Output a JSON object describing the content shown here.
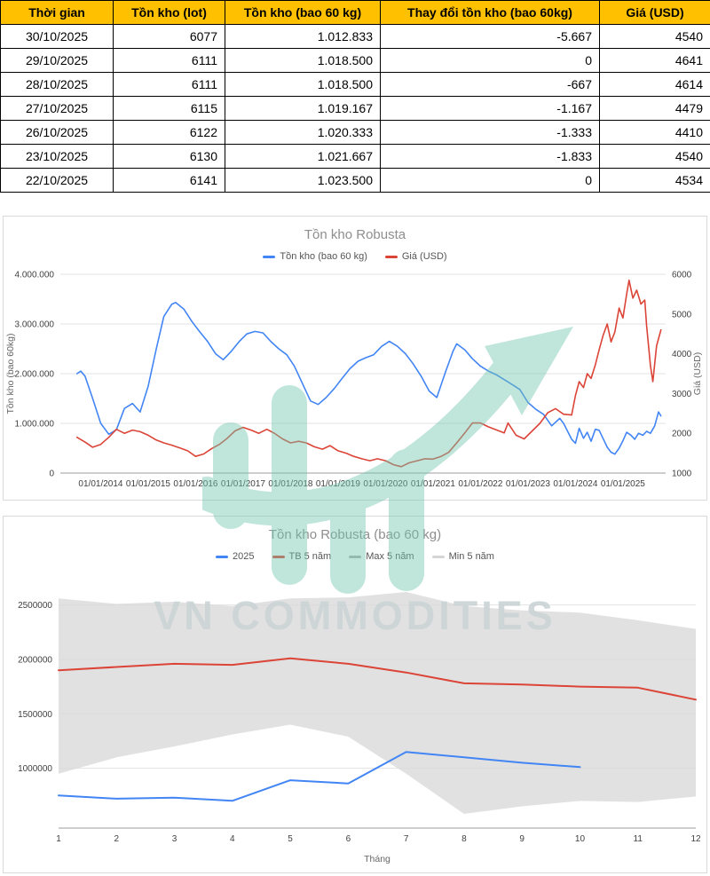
{
  "table": {
    "header_bg": "#FFC000",
    "columns": [
      "Thời gian",
      "Tồn kho (lot)",
      "Tồn kho (bao 60 kg)",
      "Thay đổi tồn kho (bao 60kg)",
      "Giá (USD)"
    ],
    "rows": [
      [
        "30/10/2025",
        "6077",
        "1.012.833",
        "-5.667",
        "4540"
      ],
      [
        "29/10/2025",
        "6111",
        "1.018.500",
        "0",
        "4641"
      ],
      [
        "28/10/2025",
        "6111",
        "1.018.500",
        "-667",
        "4614"
      ],
      [
        "27/10/2025",
        "6115",
        "1.019.167",
        "-1.167",
        "4479"
      ],
      [
        "26/10/2025",
        "6122",
        "1.020.333",
        "-1.333",
        "4410"
      ],
      [
        "23/10/2025",
        "6130",
        "1.021.667",
        "-1.833",
        "4540"
      ],
      [
        "22/10/2025",
        "6141",
        "1.023.500",
        "0",
        "4534"
      ]
    ]
  },
  "watermark": {
    "text": "VN COMMODITIES",
    "color": "#ccd4d6",
    "arrow_color": "#74c7b0"
  },
  "chart_data": [
    {
      "type": "line",
      "title": "Tồn kho Robusta",
      "legend_position": "top",
      "grid": true,
      "xlim": [
        2013.15,
        2025.9
      ],
      "x_ticks": [
        "01/01/2014",
        "01/01/2015",
        "01/01/2016",
        "01/01/2017",
        "01/01/2018",
        "01/01/2019",
        "01/01/2020",
        "01/01/2021",
        "01/01/2022",
        "01/01/2023",
        "01/01/2024",
        "01/01/2025"
      ],
      "x_tick_values": [
        2014,
        2015,
        2016,
        2017,
        2018,
        2019,
        2020,
        2021,
        2022,
        2023,
        2024,
        2025
      ],
      "y_left": {
        "label": "Tồn kho (bao 60kg)",
        "lim": [
          0,
          4000000
        ],
        "ticks": [
          0,
          1000000,
          2000000,
          3000000,
          4000000
        ],
        "tick_labels": [
          "0",
          "1.000.000",
          "2.000.000",
          "3.000.000",
          "4.000.000"
        ]
      },
      "y_right": {
        "label": "Giá (USD)",
        "lim": [
          1000,
          6000
        ],
        "ticks": [
          1000,
          2000,
          3000,
          4000,
          5000,
          6000
        ]
      },
      "series": [
        {
          "name": "Tồn kho (bao 60 kg)",
          "color": "#4285F4",
          "axis": "left",
          "points": [
            [
              2013.5,
              2000000
            ],
            [
              2013.58,
              2050000
            ],
            [
              2013.67,
              1950000
            ],
            [
              2013.83,
              1500000
            ],
            [
              2014.0,
              1000000
            ],
            [
              2014.17,
              780000
            ],
            [
              2014.33,
              870000
            ],
            [
              2014.5,
              1300000
            ],
            [
              2014.67,
              1400000
            ],
            [
              2014.83,
              1230000
            ],
            [
              2015.0,
              1750000
            ],
            [
              2015.17,
              2500000
            ],
            [
              2015.33,
              3150000
            ],
            [
              2015.5,
              3400000
            ],
            [
              2015.58,
              3430000
            ],
            [
              2015.75,
              3300000
            ],
            [
              2015.92,
              3050000
            ],
            [
              2016.08,
              2850000
            ],
            [
              2016.25,
              2650000
            ],
            [
              2016.42,
              2400000
            ],
            [
              2016.58,
              2280000
            ],
            [
              2016.75,
              2450000
            ],
            [
              2016.92,
              2650000
            ],
            [
              2017.08,
              2800000
            ],
            [
              2017.25,
              2850000
            ],
            [
              2017.42,
              2820000
            ],
            [
              2017.58,
              2650000
            ],
            [
              2017.75,
              2500000
            ],
            [
              2017.92,
              2380000
            ],
            [
              2018.08,
              2150000
            ],
            [
              2018.25,
              1800000
            ],
            [
              2018.42,
              1450000
            ],
            [
              2018.58,
              1380000
            ],
            [
              2018.75,
              1520000
            ],
            [
              2018.92,
              1700000
            ],
            [
              2019.08,
              1900000
            ],
            [
              2019.25,
              2100000
            ],
            [
              2019.42,
              2250000
            ],
            [
              2019.58,
              2320000
            ],
            [
              2019.75,
              2380000
            ],
            [
              2019.92,
              2550000
            ],
            [
              2020.08,
              2650000
            ],
            [
              2020.25,
              2550000
            ],
            [
              2020.42,
              2400000
            ],
            [
              2020.58,
              2200000
            ],
            [
              2020.75,
              1950000
            ],
            [
              2020.92,
              1650000
            ],
            [
              2021.08,
              1520000
            ],
            [
              2021.25,
              2000000
            ],
            [
              2021.42,
              2450000
            ],
            [
              2021.5,
              2600000
            ],
            [
              2021.67,
              2480000
            ],
            [
              2021.83,
              2300000
            ],
            [
              2022.0,
              2150000
            ],
            [
              2022.17,
              2050000
            ],
            [
              2022.33,
              1980000
            ],
            [
              2022.5,
              1880000
            ],
            [
              2022.67,
              1780000
            ],
            [
              2022.83,
              1680000
            ],
            [
              2023.0,
              1420000
            ],
            [
              2023.17,
              1280000
            ],
            [
              2023.33,
              1180000
            ],
            [
              2023.5,
              950000
            ],
            [
              2023.67,
              1100000
            ],
            [
              2023.75,
              1000000
            ],
            [
              2023.92,
              680000
            ],
            [
              2024.0,
              600000
            ],
            [
              2024.08,
              900000
            ],
            [
              2024.17,
              700000
            ],
            [
              2024.25,
              820000
            ],
            [
              2024.33,
              640000
            ],
            [
              2024.42,
              880000
            ],
            [
              2024.5,
              860000
            ],
            [
              2024.58,
              700000
            ],
            [
              2024.67,
              520000
            ],
            [
              2024.75,
              420000
            ],
            [
              2024.83,
              380000
            ],
            [
              2024.92,
              500000
            ],
            [
              2025.0,
              650000
            ],
            [
              2025.08,
              820000
            ],
            [
              2025.17,
              760000
            ],
            [
              2025.25,
              680000
            ],
            [
              2025.33,
              800000
            ],
            [
              2025.42,
              760000
            ],
            [
              2025.5,
              840000
            ],
            [
              2025.58,
              800000
            ],
            [
              2025.67,
              950000
            ],
            [
              2025.75,
              1230000
            ],
            [
              2025.8,
              1150000
            ]
          ]
        },
        {
          "name": "Giá (USD)",
          "color": "#DB4437",
          "axis": "right",
          "points": [
            [
              2013.5,
              1900
            ],
            [
              2013.67,
              1780
            ],
            [
              2013.83,
              1650
            ],
            [
              2014.0,
              1720
            ],
            [
              2014.17,
              1900
            ],
            [
              2014.33,
              2100
            ],
            [
              2014.5,
              2000
            ],
            [
              2014.67,
              2080
            ],
            [
              2014.83,
              2040
            ],
            [
              2015.0,
              1950
            ],
            [
              2015.17,
              1830
            ],
            [
              2015.33,
              1760
            ],
            [
              2015.5,
              1700
            ],
            [
              2015.67,
              1630
            ],
            [
              2015.83,
              1560
            ],
            [
              2016.0,
              1420
            ],
            [
              2016.17,
              1480
            ],
            [
              2016.33,
              1610
            ],
            [
              2016.5,
              1720
            ],
            [
              2016.67,
              1880
            ],
            [
              2016.83,
              2060
            ],
            [
              2017.0,
              2150
            ],
            [
              2017.17,
              2080
            ],
            [
              2017.33,
              2000
            ],
            [
              2017.5,
              2100
            ],
            [
              2017.67,
              1990
            ],
            [
              2017.83,
              1860
            ],
            [
              2018.0,
              1760
            ],
            [
              2018.17,
              1800
            ],
            [
              2018.33,
              1760
            ],
            [
              2018.5,
              1660
            ],
            [
              2018.67,
              1600
            ],
            [
              2018.83,
              1690
            ],
            [
              2019.0,
              1560
            ],
            [
              2019.17,
              1500
            ],
            [
              2019.33,
              1420
            ],
            [
              2019.5,
              1360
            ],
            [
              2019.67,
              1310
            ],
            [
              2019.83,
              1360
            ],
            [
              2020.0,
              1310
            ],
            [
              2020.17,
              1210
            ],
            [
              2020.33,
              1160
            ],
            [
              2020.5,
              1260
            ],
            [
              2020.67,
              1310
            ],
            [
              2020.83,
              1360
            ],
            [
              2021.0,
              1350
            ],
            [
              2021.17,
              1420
            ],
            [
              2021.33,
              1520
            ],
            [
              2021.5,
              1760
            ],
            [
              2021.67,
              2010
            ],
            [
              2021.83,
              2260
            ],
            [
              2022.0,
              2260
            ],
            [
              2022.17,
              2160
            ],
            [
              2022.33,
              2090
            ],
            [
              2022.5,
              2010
            ],
            [
              2022.58,
              2260
            ],
            [
              2022.75,
              1950
            ],
            [
              2022.92,
              1860
            ],
            [
              2023.08,
              2050
            ],
            [
              2023.25,
              2250
            ],
            [
              2023.42,
              2520
            ],
            [
              2023.58,
              2620
            ],
            [
              2023.75,
              2480
            ],
            [
              2023.92,
              2460
            ],
            [
              2024.0,
              2950
            ],
            [
              2024.08,
              3300
            ],
            [
              2024.17,
              3150
            ],
            [
              2024.25,
              3500
            ],
            [
              2024.33,
              3380
            ],
            [
              2024.42,
              3720
            ],
            [
              2024.5,
              4100
            ],
            [
              2024.58,
              4450
            ],
            [
              2024.67,
              4750
            ],
            [
              2024.75,
              4300
            ],
            [
              2024.83,
              4550
            ],
            [
              2024.92,
              5150
            ],
            [
              2025.0,
              4900
            ],
            [
              2025.08,
              5500
            ],
            [
              2025.13,
              5850
            ],
            [
              2025.21,
              5400
            ],
            [
              2025.29,
              5600
            ],
            [
              2025.38,
              5250
            ],
            [
              2025.46,
              5350
            ],
            [
              2025.5,
              4700
            ],
            [
              2025.58,
              3700
            ],
            [
              2025.63,
              3300
            ],
            [
              2025.71,
              4200
            ],
            [
              2025.79,
              4550
            ],
            [
              2025.8,
              4600
            ]
          ]
        }
      ]
    },
    {
      "type": "line",
      "title": "Tồn kho Robusta (bao 60 kg)",
      "legend_position": "top",
      "grid": true,
      "xlabel": "Tháng",
      "xlim": [
        1,
        12
      ],
      "x_ticks": [
        "1",
        "2",
        "3",
        "4",
        "5",
        "6",
        "7",
        "8",
        "9",
        "10",
        "11",
        "12"
      ],
      "x_tick_values": [
        1,
        2,
        3,
        4,
        5,
        6,
        7,
        8,
        9,
        10,
        11,
        12
      ],
      "y_left": {
        "label": "",
        "lim": [
          450000,
          2750000
        ],
        "ticks": [
          1000000,
          1500000,
          2000000,
          2500000
        ],
        "tick_labels": [
          "1000000",
          "1500000",
          "2000000",
          "2500000"
        ]
      },
      "band": {
        "name_max": "Max 5 năm",
        "name_min": "Min 5 năm",
        "color": "#d9d9d9",
        "legend_colors": {
          "max": "#b0b0b0",
          "min": "#d5d5d5"
        },
        "x": [
          1,
          2,
          3,
          4,
          5,
          6,
          7,
          8,
          9,
          10,
          11,
          12
        ],
        "max": [
          2560000,
          2510000,
          2530000,
          2490000,
          2560000,
          2570000,
          2620000,
          2490000,
          2450000,
          2430000,
          2360000,
          2280000
        ],
        "min": [
          950000,
          1100000,
          1200000,
          1310000,
          1400000,
          1290000,
          950000,
          580000,
          650000,
          700000,
          690000,
          740000
        ]
      },
      "series": [
        {
          "name": "2025",
          "color": "#4285F4",
          "axis": "left",
          "points": [
            [
              1,
              750000
            ],
            [
              2,
              720000
            ],
            [
              3,
              730000
            ],
            [
              4,
              700000
            ],
            [
              5,
              890000
            ],
            [
              6,
              860000
            ],
            [
              7,
              1150000
            ],
            [
              8,
              1100000
            ],
            [
              9,
              1050000
            ],
            [
              10,
              1010000
            ]
          ]
        },
        {
          "name": "TB 5 năm",
          "color": "#DB4437",
          "axis": "left",
          "points": [
            [
              1,
              1900000
            ],
            [
              2,
              1930000
            ],
            [
              3,
              1960000
            ],
            [
              4,
              1950000
            ],
            [
              5,
              2010000
            ],
            [
              6,
              1960000
            ],
            [
              7,
              1880000
            ],
            [
              8,
              1780000
            ],
            [
              9,
              1770000
            ],
            [
              10,
              1750000
            ],
            [
              11,
              1740000
            ],
            [
              12,
              1630000
            ]
          ]
        }
      ]
    }
  ]
}
